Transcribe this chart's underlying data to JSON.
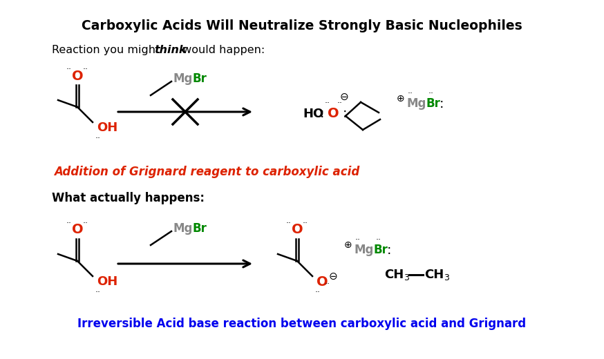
{
  "title": "Carboxylic Acids Will Neutralize Strongly Basic Nucleophiles",
  "subtitle_think_pre": "Reaction you might ",
  "subtitle_think_word": "think",
  "subtitle_think_post": " would happen:",
  "label_red": "Addition of Grignard reagent to carboxylic acid",
  "subtitle_actual": "What actually happens:",
  "label_blue": "Irreversible Acid base reaction between carboxylic acid and Grignard",
  "bg_color": "#ffffff",
  "black": "#000000",
  "red": "#dd2200",
  "green": "#008800",
  "blue": "#0000ee",
  "gray": "#888888"
}
